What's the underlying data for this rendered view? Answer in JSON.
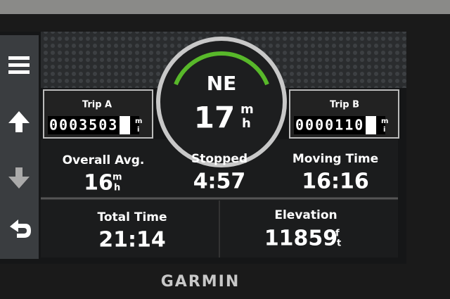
{
  "heading": "NE",
  "speed": {
    "value": "17",
    "unit": [
      "m",
      "h"
    ]
  },
  "trip_a": {
    "label": "Trip A",
    "odometer": "0003503",
    "unit": [
      "m",
      "i"
    ]
  },
  "trip_b": {
    "label": "Trip B",
    "odometer": "0000110",
    "unit": [
      "m",
      "i"
    ]
  },
  "fields": [
    {
      "label": "Overall Avg.",
      "value": "16",
      "unit": [
        "m",
        "h"
      ]
    },
    {
      "label": "Stopped",
      "value": "4:57"
    },
    {
      "label": "Moving Time",
      "value": "16:16"
    },
    {
      "label": "Total Time",
      "value": "21:14"
    },
    {
      "label": "Elevation",
      "value": "11859",
      "unit": [
        "f",
        "t"
      ]
    }
  ],
  "brand": "GARMIN"
}
